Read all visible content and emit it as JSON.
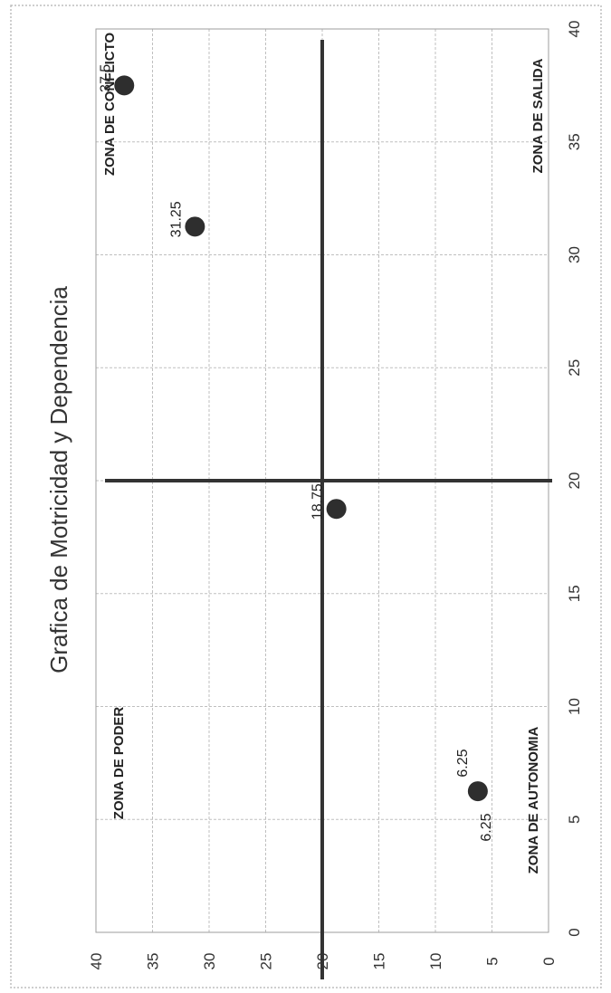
{
  "chart_data": {
    "type": "scatter",
    "title": "Grafica de Motricidad y Dependencia",
    "xlabel": "",
    "ylabel": "",
    "xlim": [
      0,
      40
    ],
    "ylim": [
      0,
      40
    ],
    "x_ticks": [
      0,
      5,
      10,
      15,
      20,
      25,
      30,
      35,
      40
    ],
    "y_ticks": [
      0,
      5,
      10,
      15,
      20,
      25,
      30,
      35,
      40
    ],
    "grid": true,
    "quadrant_lines": {
      "x": 20,
      "y": 20
    },
    "zones": {
      "top_left": "ZONA DE PODER",
      "bottom_left": "ZONA DE AUTONOMIA",
      "top_right": "ZONA DE CONFLICTO",
      "bottom_right": "ZONA DE SALIDA"
    },
    "points": [
      {
        "x": 6.25,
        "y": 6.25,
        "labels": [
          "6.25",
          "6.25"
        ]
      },
      {
        "x": 18.75,
        "y": 18.75,
        "labels": [
          "18.75"
        ]
      },
      {
        "x": 31.25,
        "y": 31.25,
        "labels": [
          "31.25"
        ]
      },
      {
        "x": 37.5,
        "y": 37.5,
        "labels": [
          "37.5"
        ]
      }
    ],
    "point_color": "#2e2e2e",
    "line_color": "#333333",
    "grid_color": "#bfbfbf"
  }
}
